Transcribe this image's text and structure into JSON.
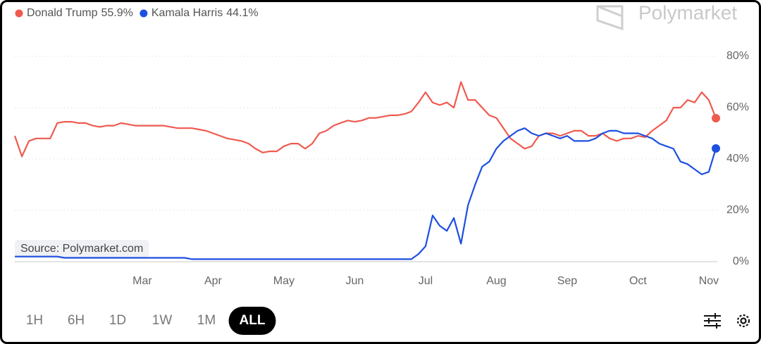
{
  "chart_data": {
    "type": "line",
    "brand": "Polymarket",
    "source": "Source: Polymarket.com",
    "ranges": [
      "1H",
      "6H",
      "1D",
      "1W",
      "1M",
      "ALL"
    ],
    "selected_range_index": 5,
    "categories": [
      null,
      null,
      null,
      null,
      null,
      null,
      null,
      null,
      null,
      null,
      null,
      null,
      null,
      null,
      null,
      null,
      null,
      null,
      "Mar",
      null,
      null,
      null,
      null,
      null,
      null,
      null,
      null,
      null,
      "Apr",
      null,
      null,
      null,
      null,
      null,
      null,
      null,
      null,
      null,
      "May",
      null,
      null,
      null,
      null,
      null,
      null,
      null,
      null,
      null,
      "Jun",
      null,
      null,
      null,
      null,
      null,
      null,
      null,
      null,
      null,
      "Jul",
      null,
      null,
      null,
      null,
      null,
      null,
      null,
      null,
      null,
      "Aug",
      null,
      null,
      null,
      null,
      null,
      null,
      null,
      null,
      null,
      "Sep",
      null,
      null,
      null,
      null,
      null,
      null,
      null,
      null,
      null,
      "Oct",
      null,
      null,
      null,
      null,
      null,
      null,
      null,
      null,
      null,
      "Nov",
      null
    ],
    "series": [
      {
        "name": "Donald Trump",
        "color": "#ef5a4f",
        "last_value_label": "55.9%",
        "values": [
          49,
          41,
          47,
          48,
          48,
          48,
          54,
          54.5,
          54.5,
          54,
          54,
          53,
          52.5,
          53,
          53,
          54,
          53.5,
          53,
          53,
          53,
          53,
          53,
          52.5,
          52,
          52,
          52,
          51.5,
          51,
          50,
          49,
          48,
          47.5,
          47,
          46,
          44,
          42.5,
          43,
          43,
          45,
          46,
          46,
          44,
          46,
          50,
          51,
          53,
          54,
          55,
          54.5,
          55,
          56,
          56,
          56.5,
          57,
          57,
          57.5,
          58.5,
          62,
          66,
          62,
          61,
          62,
          60,
          70,
          63,
          63,
          60,
          57,
          56,
          52,
          48,
          46,
          44,
          45,
          49,
          50,
          50,
          49,
          50,
          51,
          51,
          49,
          49,
          50,
          48,
          47,
          48,
          48,
          49,
          48.5,
          51,
          53,
          55,
          60,
          60,
          63,
          62,
          66,
          63,
          55.9
        ]
      },
      {
        "name": "Kamala Harris",
        "color": "#1d4fe0",
        "last_value_label": "44.1%",
        "values": [
          2,
          2,
          2,
          2,
          2,
          2,
          2,
          1.5,
          1.5,
          1.5,
          1.5,
          1.5,
          1.5,
          1.5,
          1.5,
          1.5,
          1.5,
          1.5,
          1.5,
          1.5,
          1.5,
          1.5,
          1.5,
          1.5,
          1.5,
          1,
          1,
          1,
          1,
          1,
          1,
          1,
          1,
          1,
          1,
          1,
          1,
          1,
          1,
          1,
          1,
          1,
          1,
          1,
          1,
          1,
          1,
          1,
          1,
          1,
          1,
          1,
          1,
          1,
          1,
          1,
          1,
          3,
          6,
          18,
          14,
          12,
          17,
          7,
          22,
          30,
          37,
          39,
          44,
          47,
          49,
          51,
          52,
          50,
          49,
          50,
          49,
          48,
          49,
          47,
          47,
          47,
          48,
          50,
          51,
          51,
          50,
          50,
          50,
          49,
          48,
          46,
          45,
          44,
          39,
          38,
          36,
          34,
          35,
          44.1
        ]
      }
    ],
    "ylim": [
      0,
      80
    ],
    "yticks": [
      {
        "value": 0,
        "label": "0%"
      },
      {
        "value": 20,
        "label": "20%"
      },
      {
        "value": 40,
        "label": "40%"
      },
      {
        "value": 60,
        "label": "60%"
      },
      {
        "value": 80,
        "label": "80%"
      }
    ],
    "grid": true
  }
}
